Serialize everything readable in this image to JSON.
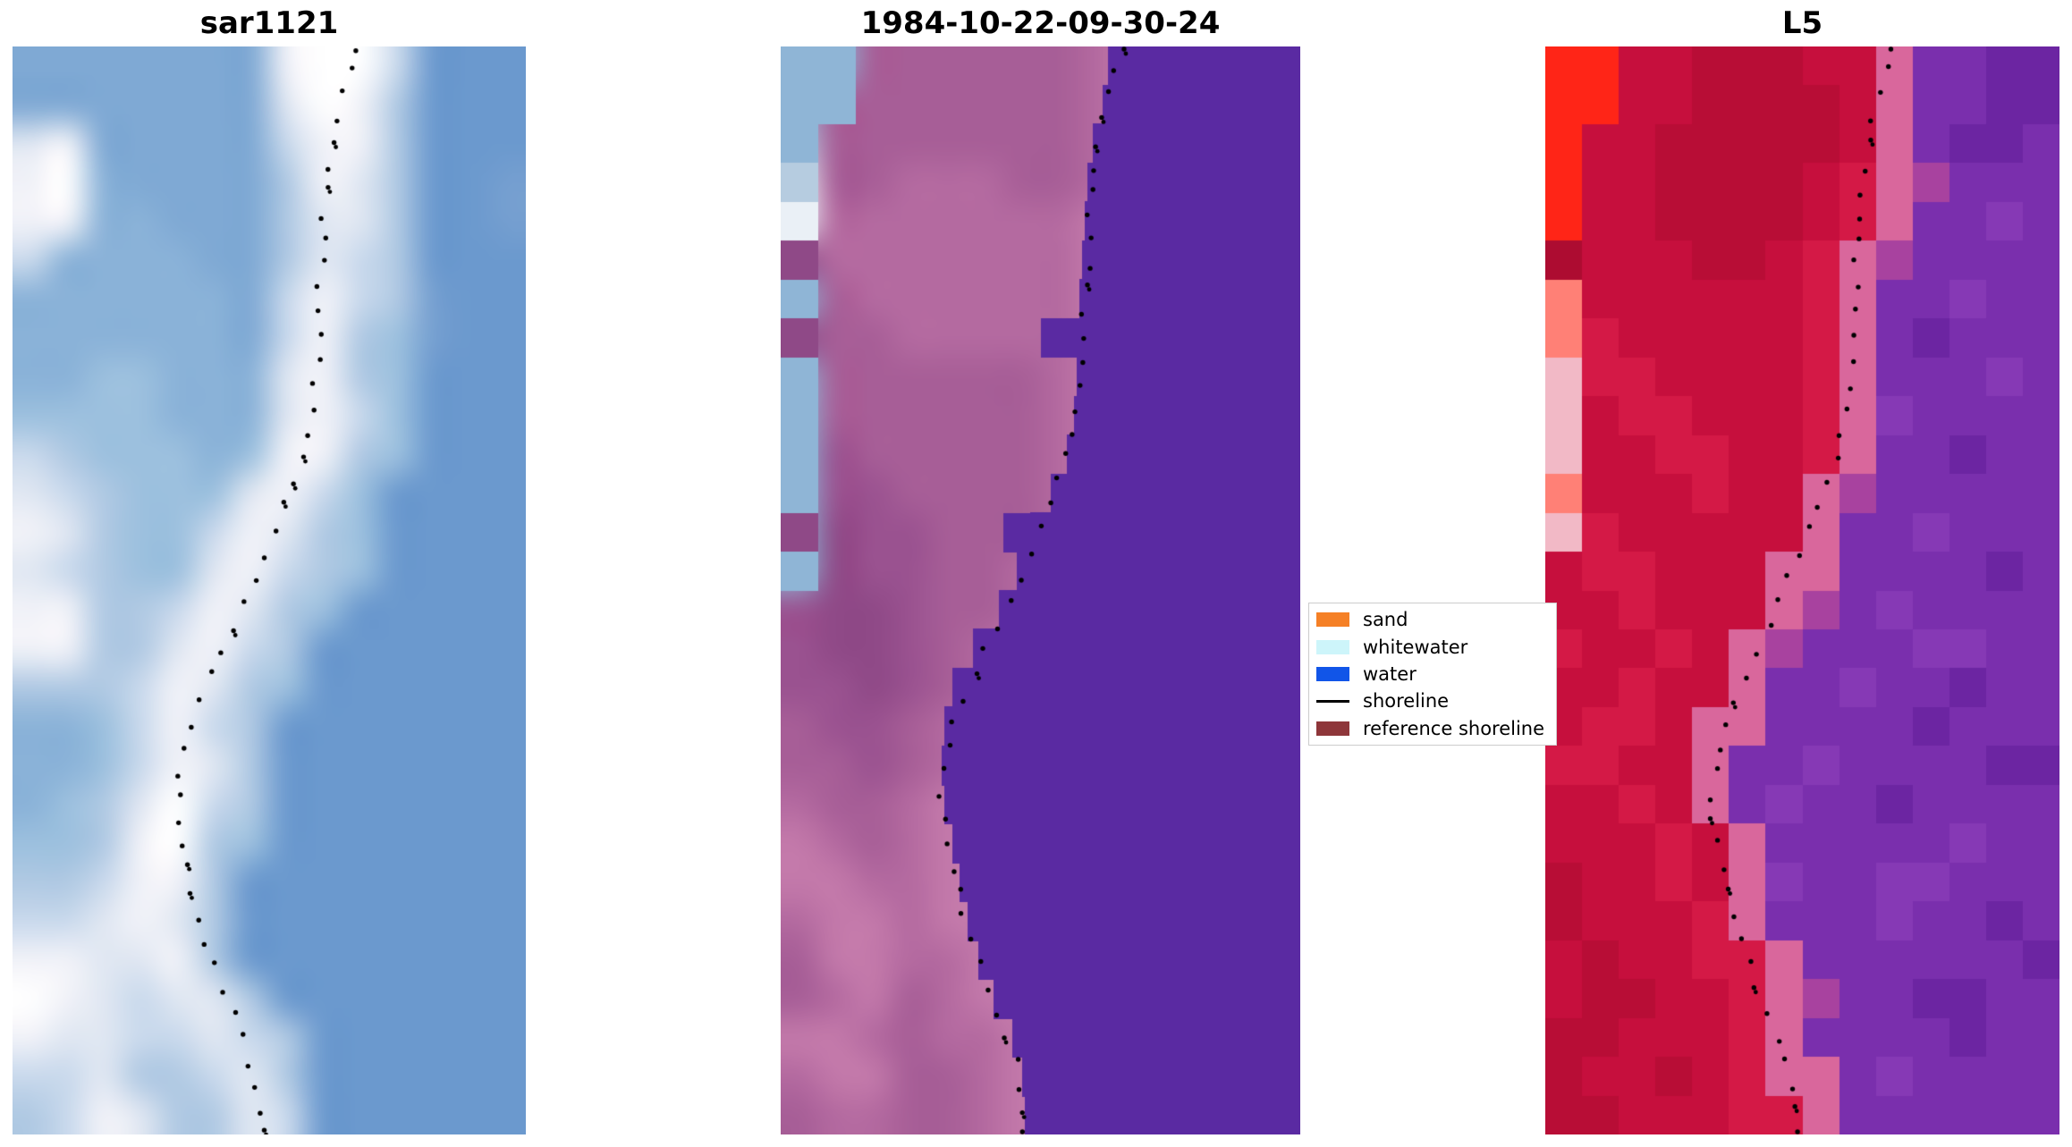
{
  "chart_data": {
    "type": "heatmap",
    "description": "Figure with three coastal satellite image panels and a dotted detected shoreline overlaid on each; legend maps classification colors.",
    "background": "#ffffff",
    "panels": [
      {
        "id": "sar1121",
        "title": "sar1121",
        "render": "smooth",
        "seed": 3,
        "shoreline_dx": 0.012,
        "palette": [
          "#6b99ce",
          "#7fa9d4",
          "#8ab2d8",
          "#9cc0de",
          "#b0c9e3",
          "#c9d9ec",
          "#e0e7f2",
          "#f1f2f8",
          "#ffffff",
          "#6190c7",
          "#88aed4",
          "#759fd0"
        ],
        "grid_cols": 14,
        "grid_rows": [
          "11111117885000",
          "11111116874000",
          "67111115774000",
          "7821111476400B",
          "7722111466400B",
          "52222114654000",
          "22222215754B00",
          "22222215743B00",
          "22332226743000",
          "33332226753000",
          "54333237743000",
          "65433367530000",
          "76433576430000",
          "65433675430000",
          "77445764300000",
          "77446754000000",
          "44457643000000",
          "22357540000000",
          "22357640000000",
          "23468540000000",
          "33478430000000",
          "44577400000000",
          "55676400000000",
          "77667400000000",
          "87656640000000",
          "76655654000000",
          "55644564000000",
          "45764465000000"
        ],
        "water_overlay": null,
        "sharp_cells": []
      },
      {
        "id": "classified-1984",
        "title": "1984-10-22-09-30-24",
        "render": "smooth",
        "seed": 7,
        "shoreline_dx": 0.0,
        "palette": [
          "#5a2aa2",
          "#9a5290",
          "#a75e97",
          "#b46aa0",
          "#c379aa",
          "#8fb5d6",
          "#eaf0f6",
          "#b6cce0",
          "#8f4987",
          "#a25691"
        ],
        "grid_cols": 14,
        "grid_rows": [
          "55222222342222",
          "52222222342222",
          "72222222342222",
          "62233322342222",
          "63333333442222",
          "83333333422222",
          "52333333422222",
          "82233333422222",
          "52222223422222",
          "52222223422222",
          "51222223422222",
          "51122223422222",
          "58112223422222",
          "58112234222222",
          "18812234222222",
          "18812342222222",
          "11812342222222",
          "21123422222222",
          "22123422222222",
          "32234422222222",
          "43234422222222",
          "44334422222222",
          "34434422222222",
          "24433442222222",
          "23423442222222",
          "44323342222222",
          "34422344222222",
          "23322344222222"
        ],
        "water_overlay": {
          "color": "#5a2aa2",
          "boundary": [
            0.63,
            0.62,
            0.6,
            0.59,
            0.585,
            0.58,
            0.575,
            0.572,
            0.57,
            0.565,
            0.55,
            0.52,
            0.48,
            0.455,
            0.42,
            0.37,
            0.33,
            0.315,
            0.31,
            0.315,
            0.33,
            0.345,
            0.36,
            0.38,
            0.41,
            0.445,
            0.465,
            0.47
          ]
        },
        "sharp_cells": [
          [
            0,
            0,
            "5"
          ],
          [
            1,
            0,
            "5"
          ],
          [
            0,
            1,
            "5"
          ],
          [
            1,
            1,
            "5"
          ],
          [
            0,
            2,
            "5"
          ],
          [
            0,
            3,
            "7"
          ],
          [
            0,
            4,
            "6"
          ],
          [
            0,
            5,
            "8"
          ],
          [
            0,
            6,
            "5"
          ],
          [
            0,
            7,
            "8"
          ],
          [
            0,
            8,
            "5"
          ],
          [
            0,
            9,
            "5"
          ],
          [
            0,
            10,
            "5"
          ],
          [
            0,
            11,
            "5"
          ],
          [
            0,
            12,
            "8"
          ],
          [
            0,
            13,
            "5"
          ],
          [
            7,
            7,
            "0"
          ],
          [
            6,
            12,
            "0"
          ]
        ]
      },
      {
        "id": "L5",
        "title": "L5",
        "render": "pixelated",
        "seed": 11,
        "shoreline_dx": 0.015,
        "palette": [
          "#7a2fad",
          "#6c25a2",
          "#8639b5",
          "#c60f3d",
          "#d41946",
          "#b80d36",
          "#d9679c",
          "#ff2517",
          "#ff8076",
          "#f2b9c6",
          "#a8429f",
          "#ad0c31"
        ],
        "grid_cols": 14,
        "grid_rows": [
          "77335553360011",
          "77335555360011",
          "73355555360110",
          "7335555346A000",
          "73355553460020",
          "B33355346A0000",
          "83333334600200",
          "84333334601000",
          "94433334600020",
          "93443334620000",
          "93344334600100",
          "83334336A00000",
          "94333336002000",
          "34433366000010",
          "3343336A020000",
          "433436A0002200",
          "33433600200100",
          "34436600001000",
          "44336002000011",
          "33436020010000",
          "33343600000200",
          "53343620022000",
          "53334600020010",
          "35334460000001",
          "3553346A001100",
          "55333460000100",
          "53353466020000",
          "55333446000000"
        ],
        "water_overlay": null,
        "sharp_cells": []
      }
    ],
    "shoreline": {
      "color": "#000000",
      "dot_radius_px": 2.7,
      "dot_count": 46,
      "points": [
        [
          0.655,
          0.0
        ],
        [
          0.645,
          0.025
        ],
        [
          0.634,
          0.05
        ],
        [
          0.622,
          0.07
        ],
        [
          0.612,
          0.09
        ],
        [
          0.604,
          0.115
        ],
        [
          0.598,
          0.14
        ],
        [
          0.594,
          0.17
        ],
        [
          0.59,
          0.2
        ],
        [
          0.587,
          0.23
        ],
        [
          0.584,
          0.26
        ],
        [
          0.581,
          0.29
        ],
        [
          0.577,
          0.315
        ],
        [
          0.57,
          0.34
        ],
        [
          0.558,
          0.365
        ],
        [
          0.543,
          0.39
        ],
        [
          0.525,
          0.415
        ],
        [
          0.505,
          0.44
        ],
        [
          0.485,
          0.462
        ],
        [
          0.465,
          0.483
        ],
        [
          0.446,
          0.505
        ],
        [
          0.425,
          0.528
        ],
        [
          0.402,
          0.55
        ],
        [
          0.376,
          0.574
        ],
        [
          0.352,
          0.598
        ],
        [
          0.333,
          0.622
        ],
        [
          0.32,
          0.648
        ],
        [
          0.312,
          0.675
        ],
        [
          0.31,
          0.7
        ],
        [
          0.316,
          0.727
        ],
        [
          0.327,
          0.754
        ],
        [
          0.341,
          0.78
        ],
        [
          0.355,
          0.806
        ],
        [
          0.37,
          0.832
        ],
        [
          0.388,
          0.857
        ],
        [
          0.408,
          0.88
        ],
        [
          0.428,
          0.903
        ],
        [
          0.447,
          0.925
        ],
        [
          0.46,
          0.947
        ],
        [
          0.468,
          0.968
        ],
        [
          0.472,
          0.988
        ],
        [
          0.472,
          1.0
        ]
      ]
    },
    "legend": {
      "position": "center-right between panel 2 and panel 3",
      "items": [
        {
          "label": "sand",
          "color": "#f58026",
          "kind": "patch"
        },
        {
          "label": "whitewater",
          "color": "#cdf5fa",
          "kind": "patch"
        },
        {
          "label": "water",
          "color": "#1155e8",
          "kind": "patch"
        },
        {
          "label": "shoreline",
          "color": "#000000",
          "kind": "line"
        },
        {
          "label": "reference shoreline",
          "color": "#8e363a",
          "kind": "patch"
        }
      ]
    }
  }
}
